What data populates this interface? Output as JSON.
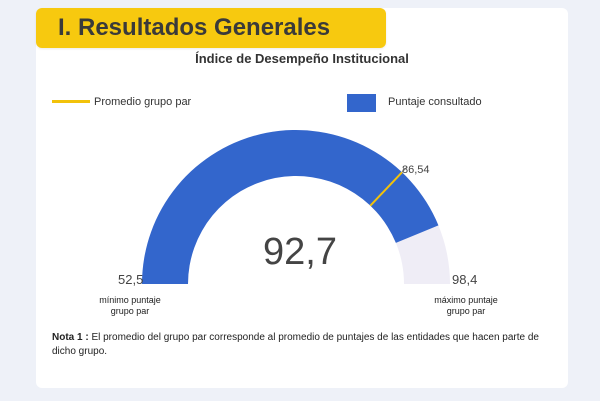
{
  "header": {
    "title": "I. Resultados Generales"
  },
  "colors": {
    "banner": "#f7c90f",
    "primary": "#3366cc",
    "peer_line": "#f2c20a",
    "track": "#efedf6"
  },
  "chart_data": {
    "type": "gauge",
    "title": "Índice de Desempeño Institucional",
    "min": 52.5,
    "max": 98.4,
    "value": 92.7,
    "peer_average": 86.54,
    "min_label": "52,5",
    "max_label": "98,4",
    "value_label": "92,7",
    "peer_label": "86,54",
    "min_caption": [
      "mínimo puntaje",
      "grupo par"
    ],
    "max_caption": [
      "máximo puntaje",
      "grupo par"
    ],
    "legend": {
      "line_label": "Promedio grupo par",
      "box_label": "Puntaje consultado"
    }
  },
  "note": {
    "label": "Nota 1 :",
    "text": " El promedio del grupo par corresponde al promedio de puntajes de las entidades que hacen parte de dicho grupo."
  }
}
